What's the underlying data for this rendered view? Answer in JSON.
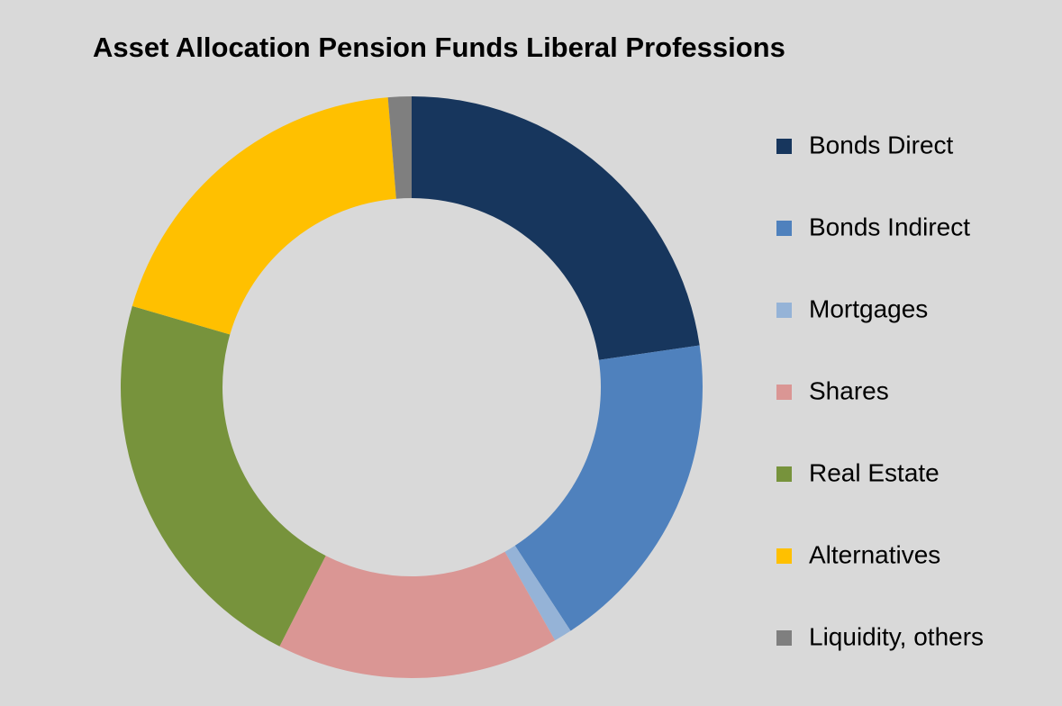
{
  "chart_data": {
    "type": "donut",
    "title": "Asset Allocation Pension Funds Liberal Professions",
    "categories": [
      "Bonds Direct",
      "Bonds Indirect",
      "Mortgages",
      "Shares",
      "Real Estate",
      "Alternatives",
      "Liquidity, others"
    ],
    "values": [
      22.7,
      18.1,
      1.0,
      15.7,
      22.0,
      19.2,
      1.3
    ],
    "colors": [
      "#17365d",
      "#4f81bd",
      "#95b3d7",
      "#da9694",
      "#77933c",
      "#ffc000",
      "#7f7f7f"
    ],
    "legend": "right"
  }
}
